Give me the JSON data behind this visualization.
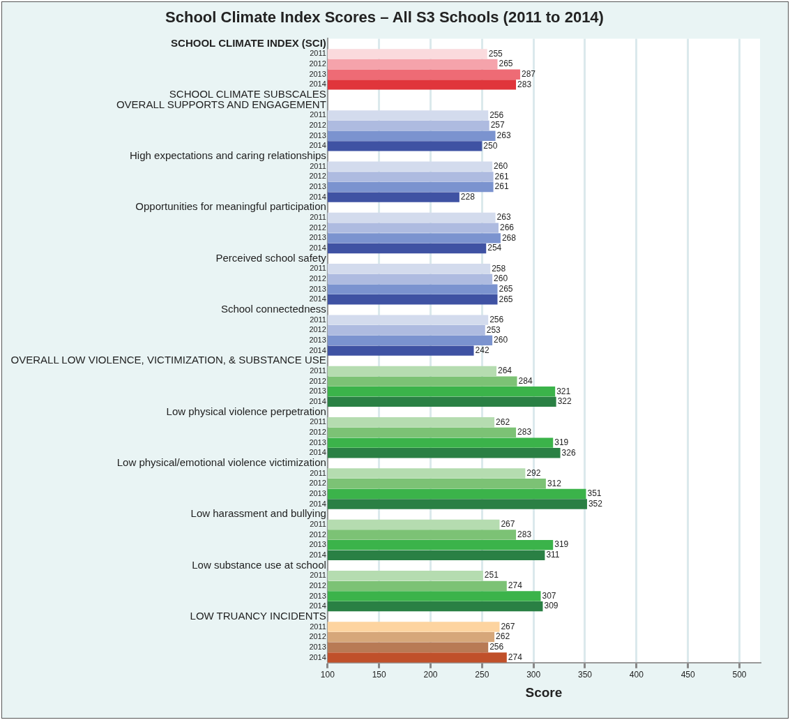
{
  "chart_data": {
    "type": "bar",
    "orientation": "horizontal",
    "title": "School Climate Index Scores – All S3 Schools (2011 to 2014)",
    "xlabel": "Score",
    "categories": [
      "SCHOOL CLIMATE INDEX (SCI)",
      "2011",
      "2012",
      "2013",
      "2014",
      "SCHOOL CLIMATE SUBSCALES",
      "OVERALL SUPPORTS AND ENGAGEMENT",
      "2011",
      "2012",
      "2013",
      "2014",
      "High expectations and caring relationships",
      "2011",
      "2012",
      "2013",
      "2014",
      "Opportunities for meaningful participation",
      "2011",
      "2012",
      "2013",
      "2014",
      "Perceived school safety",
      "2011",
      "2012",
      "2013",
      "2014",
      "School connectedness",
      "2011",
      "2012",
      "2013",
      "2014",
      "OVERALL LOW VIOLENCE, VICTIMIZATION, & SUBSTANCE USE",
      "2011",
      "2012",
      "2013",
      "2014",
      "Low physical violence perpetration",
      "2011",
      "2012",
      "2013",
      "2014",
      "Low physical/emotional violence victimization",
      "2011",
      "2012",
      "2013",
      "2014",
      "Low harassment and bullying",
      "2011",
      "2012",
      "2013",
      "2014",
      "Low substance use at school",
      "2011",
      "2012",
      "2013",
      "2014",
      "LOW TRUANCY INCIDENTS",
      "2011",
      "2012",
      "2013",
      "2014"
    ],
    "values": [
      null,
      255,
      265,
      287,
      283,
      null,
      null,
      256,
      257,
      263,
      250,
      null,
      260,
      261,
      261,
      228,
      null,
      263,
      266,
      268,
      254,
      null,
      258,
      260,
      265,
      265,
      null,
      256,
      253,
      260,
      242,
      null,
      264,
      284,
      321,
      322,
      null,
      262,
      283,
      319,
      326,
      null,
      292,
      312,
      351,
      352,
      null,
      267,
      283,
      319,
      311,
      null,
      251,
      274,
      307,
      309,
      null,
      267,
      262,
      256,
      274
    ],
    "colors": [
      null,
      "#fadadd",
      "#f5a3ab",
      "#ee6b75",
      "#e0353b",
      null,
      null,
      "#d3dbed",
      "#aebbe0",
      "#7b93cf",
      "#3f52a3",
      null,
      "#d3dbed",
      "#aebbe0",
      "#7b93cf",
      "#3f52a3",
      null,
      "#d3dbed",
      "#aebbe0",
      "#7b93cf",
      "#3f52a3",
      null,
      "#d3dbed",
      "#aebbe0",
      "#7b93cf",
      "#3f52a3",
      null,
      "#d3dbed",
      "#aebbe0",
      "#7b93cf",
      "#3f52a3",
      null,
      "#b5dcb0",
      "#7cc275",
      "#3bb34a",
      "#2a8044",
      null,
      "#b5dcb0",
      "#7cc275",
      "#3bb34a",
      "#2a8044",
      null,
      "#b5dcb0",
      "#7cc275",
      "#3bb34a",
      "#2a8044",
      null,
      "#b5dcb0",
      "#7cc275",
      "#3bb34a",
      "#2a8044",
      null,
      "#b5dcb0",
      "#7cc275",
      "#3bb34a",
      "#2a8044",
      null,
      "#fdd4a0",
      "#d6a77a",
      "#b87a55",
      "#c0502a"
    ],
    "xlim": [
      100,
      520
    ],
    "xticks": [
      100,
      150,
      200,
      250,
      300,
      350,
      400,
      450,
      500
    ],
    "grid": "x",
    "data_labels": true,
    "legend": false
  }
}
